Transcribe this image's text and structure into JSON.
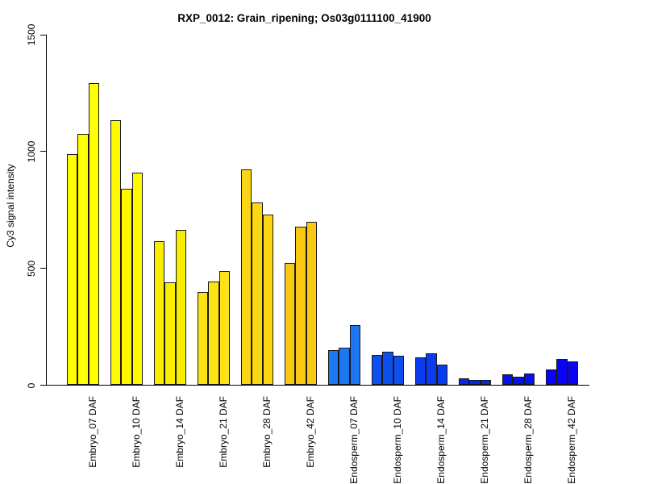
{
  "figure": {
    "title": "RXP_0012: Grain_ripening; Os03g0111100_41900",
    "ylabel": "Cy3 signal intensity"
  },
  "chart_data": {
    "type": "bar",
    "title": "RXP_0012: Grain_ripening; Os03g0111100_41900",
    "xlabel": "",
    "ylabel": "Cy3 signal intensity",
    "ylim": [
      0,
      1500
    ],
    "yticks": [
      0,
      500,
      1000,
      1500
    ],
    "grid": false,
    "legend": false,
    "bars_per_group": 3,
    "bar_border_color": "#1a1a1a",
    "categories": [
      "Embryo_07 DAF",
      "Embryo_10 DAF",
      "Embryo_14 DAF",
      "Embryo_21 DAF",
      "Embryo_28 DAF",
      "Embryo_42 DAF",
      "Endosperm_07 DAF",
      "Endosperm_10 DAF",
      "Endosperm_14 DAF",
      "Endosperm_21 DAF",
      "Endosperm_28 DAF",
      "Endosperm_42 DAF"
    ],
    "groups": [
      {
        "label": "Embryo_07 DAF",
        "color": "#FFFF00",
        "values": [
          990,
          1075,
          1292
        ]
      },
      {
        "label": "Embryo_10 DAF",
        "color": "#FEF900",
        "values": [
          1134,
          840,
          908
        ]
      },
      {
        "label": "Embryo_14 DAF",
        "color": "#F9EE00",
        "values": [
          615,
          440,
          665
        ]
      },
      {
        "label": "Embryo_21 DAF",
        "color": "#FDE215",
        "values": [
          398,
          443,
          490
        ]
      },
      {
        "label": "Embryo_28 DAF",
        "color": "#FCD612",
        "values": [
          925,
          782,
          730
        ]
      },
      {
        "label": "Embryo_42 DAF",
        "color": "#FBC811",
        "values": [
          522,
          678,
          698
        ]
      },
      {
        "label": "Endosperm_07 DAF",
        "color": "#1D76F2",
        "values": [
          150,
          159,
          257
        ]
      },
      {
        "label": "Endosperm_10 DAF",
        "color": "#0E4FF0",
        "values": [
          128,
          144,
          125
        ]
      },
      {
        "label": "Endosperm_14 DAF",
        "color": "#0A3BEE",
        "values": [
          119,
          136,
          87
        ]
      },
      {
        "label": "Endosperm_21 DAF",
        "color": "#0726EE",
        "values": [
          28,
          22,
          22
        ]
      },
      {
        "label": "Endosperm_28 DAF",
        "color": "#0313EA",
        "values": [
          48,
          37,
          51
        ]
      },
      {
        "label": "Endosperm_42 DAF",
        "color": "#0904F8",
        "values": [
          66,
          111,
          102
        ]
      }
    ]
  }
}
